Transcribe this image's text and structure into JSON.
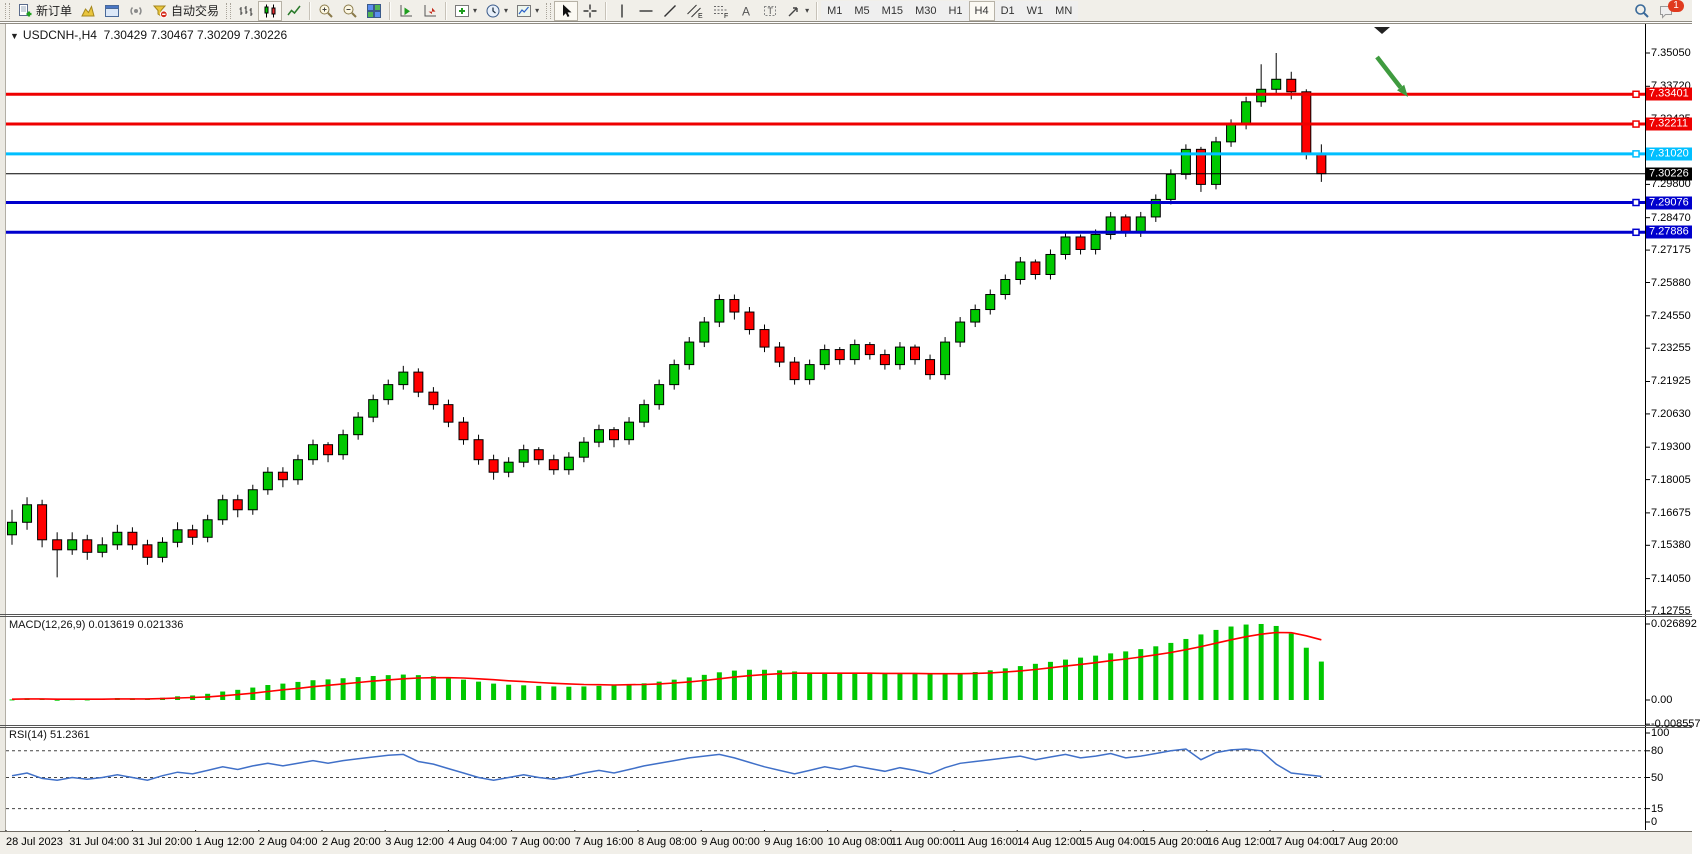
{
  "toolbar": {
    "new_order_label": "新订单",
    "autotrading_label": "自动交易",
    "timeframes": [
      "M1",
      "M5",
      "M15",
      "M30",
      "H1",
      "H4",
      "D1",
      "W1",
      "MN"
    ],
    "active_timeframe": "H4",
    "notification_count": "1"
  },
  "icons": {
    "title_marker": "▼",
    "dropdown_caret": "▾",
    "text_tool": "A",
    "label_tool": "T",
    "channel_tag": "E",
    "fibo_tag": "F"
  },
  "chart": {
    "title_symbol": "USDCNH-,H4",
    "title_ohlc": "7.30429 7.30467 7.30209 7.30226",
    "colors": {
      "bull": "#00C800",
      "bear": "#FF0000",
      "outline": "#000000"
    },
    "price_range": {
      "top": 7.3505,
      "bottom": 7.12755
    },
    "price_ticks": [
      {
        "text": "7.35050",
        "value": 7.3505
      },
      {
        "text": "7.33720",
        "value": 7.3372
      },
      {
        "text": "7.32425",
        "value": 7.32425
      },
      {
        "text": "7.29800",
        "value": 7.298
      },
      {
        "text": "7.28470",
        "value": 7.2847
      },
      {
        "text": "7.27175",
        "value": 7.27175
      },
      {
        "text": "7.25880",
        "value": 7.2588
      },
      {
        "text": "7.24550",
        "value": 7.2455
      },
      {
        "text": "7.23255",
        "value": 7.23255
      },
      {
        "text": "7.21925",
        "value": 7.21925
      },
      {
        "text": "7.20630",
        "value": 7.2063
      },
      {
        "text": "7.19300",
        "value": 7.193
      },
      {
        "text": "7.18005",
        "value": 7.18005
      },
      {
        "text": "7.16675",
        "value": 7.16675
      },
      {
        "text": "7.15380",
        "value": 7.1538
      },
      {
        "text": "7.14050",
        "value": 7.1405
      },
      {
        "text": "7.12755",
        "value": 7.12755
      }
    ],
    "badges": [
      {
        "text": "7.33401",
        "value": 7.33401,
        "bg": "#EE0000",
        "fg": "#FFFFFF"
      },
      {
        "text": "7.32211",
        "value": 7.32211,
        "bg": "#EE0000",
        "fg": "#FFFFFF"
      },
      {
        "text": "7.31020",
        "value": 7.3102,
        "bg": "#00BFFF",
        "fg": "#FFFFFF"
      },
      {
        "text": "7.30226",
        "value": 7.30226,
        "bg": "#000000",
        "fg": "#FFFFFF"
      },
      {
        "text": "7.29076",
        "value": 7.29076,
        "bg": "#0000CD",
        "fg": "#FFFFFF"
      },
      {
        "text": "7.27886",
        "value": 7.27886,
        "bg": "#0000CD",
        "fg": "#FFFFFF"
      }
    ],
    "levels": [
      {
        "value": 7.33401,
        "color": "#EE0000",
        "width": 3
      },
      {
        "value": 7.32211,
        "color": "#EE0000",
        "width": 3
      },
      {
        "value": 7.3102,
        "color": "#00BFFF",
        "width": 3
      },
      {
        "value": 7.29076,
        "color": "#0000CD",
        "width": 3
      },
      {
        "value": 7.27886,
        "color": "#0000CD",
        "width": 3
      }
    ],
    "current_price": {
      "value": 7.30226,
      "color": "#000000"
    },
    "candles": [
      [
        7.158,
        7.168,
        7.154,
        7.163
      ],
      [
        7.163,
        7.173,
        7.16,
        7.17
      ],
      [
        7.17,
        7.172,
        7.153,
        7.156
      ],
      [
        7.156,
        7.159,
        7.141,
        7.152
      ],
      [
        7.152,
        7.159,
        7.15,
        7.156
      ],
      [
        7.156,
        7.158,
        7.148,
        7.151
      ],
      [
        7.151,
        7.157,
        7.149,
        7.154
      ],
      [
        7.154,
        7.162,
        7.152,
        7.159
      ],
      [
        7.159,
        7.161,
        7.152,
        7.154
      ],
      [
        7.154,
        7.156,
        7.146,
        7.149
      ],
      [
        7.149,
        7.157,
        7.147,
        7.155
      ],
      [
        7.155,
        7.163,
        7.153,
        7.16
      ],
      [
        7.16,
        7.162,
        7.154,
        7.157
      ],
      [
        7.157,
        7.166,
        7.155,
        7.164
      ],
      [
        7.164,
        7.174,
        7.162,
        7.172
      ],
      [
        7.172,
        7.174,
        7.165,
        7.168
      ],
      [
        7.168,
        7.178,
        7.166,
        7.176
      ],
      [
        7.176,
        7.185,
        7.174,
        7.183
      ],
      [
        7.183,
        7.185,
        7.177,
        7.18
      ],
      [
        7.18,
        7.19,
        7.178,
        7.188
      ],
      [
        7.188,
        7.196,
        7.186,
        7.194
      ],
      [
        7.194,
        7.195,
        7.187,
        7.19
      ],
      [
        7.19,
        7.2,
        7.188,
        7.198
      ],
      [
        7.198,
        7.207,
        7.196,
        7.205
      ],
      [
        7.205,
        7.214,
        7.203,
        7.212
      ],
      [
        7.212,
        7.22,
        7.21,
        7.218
      ],
      [
        7.218,
        7.2255,
        7.216,
        7.223
      ],
      [
        7.223,
        7.2245,
        7.213,
        7.215
      ],
      [
        7.215,
        7.217,
        7.208,
        7.21
      ],
      [
        7.21,
        7.212,
        7.201,
        7.203
      ],
      [
        7.203,
        7.205,
        7.194,
        7.196
      ],
      [
        7.196,
        7.198,
        7.186,
        7.188
      ],
      [
        7.188,
        7.19,
        7.18,
        7.183
      ],
      [
        7.183,
        7.189,
        7.181,
        7.187
      ],
      [
        7.187,
        7.194,
        7.185,
        7.192
      ],
      [
        7.192,
        7.193,
        7.186,
        7.188
      ],
      [
        7.188,
        7.19,
        7.182,
        7.184
      ],
      [
        7.184,
        7.191,
        7.182,
        7.189
      ],
      [
        7.189,
        7.197,
        7.187,
        7.195
      ],
      [
        7.195,
        7.202,
        7.193,
        7.2
      ],
      [
        7.2,
        7.201,
        7.193,
        7.196
      ],
      [
        7.196,
        7.205,
        7.194,
        7.203
      ],
      [
        7.203,
        7.212,
        7.201,
        7.21
      ],
      [
        7.21,
        7.22,
        7.208,
        7.218
      ],
      [
        7.218,
        7.228,
        7.216,
        7.226
      ],
      [
        7.226,
        7.237,
        7.224,
        7.235
      ],
      [
        7.235,
        7.245,
        7.233,
        7.243
      ],
      [
        7.243,
        7.254,
        7.241,
        7.252
      ],
      [
        7.252,
        7.254,
        7.244,
        7.247
      ],
      [
        7.247,
        7.249,
        7.238,
        7.24
      ],
      [
        7.24,
        7.242,
        7.231,
        7.233
      ],
      [
        7.233,
        7.235,
        7.225,
        7.227
      ],
      [
        7.227,
        7.229,
        7.218,
        7.22
      ],
      [
        7.22,
        7.228,
        7.218,
        7.226
      ],
      [
        7.226,
        7.234,
        7.224,
        7.232
      ],
      [
        7.232,
        7.233,
        7.226,
        7.228
      ],
      [
        7.228,
        7.236,
        7.226,
        7.234
      ],
      [
        7.234,
        7.235,
        7.228,
        7.23
      ],
      [
        7.23,
        7.232,
        7.224,
        7.226
      ],
      [
        7.226,
        7.235,
        7.224,
        7.233
      ],
      [
        7.233,
        7.234,
        7.226,
        7.228
      ],
      [
        7.228,
        7.23,
        7.22,
        7.222
      ],
      [
        7.222,
        7.237,
        7.22,
        7.235
      ],
      [
        7.235,
        7.245,
        7.233,
        7.243
      ],
      [
        7.243,
        7.25,
        7.241,
        7.248
      ],
      [
        7.248,
        7.256,
        7.246,
        7.254
      ],
      [
        7.254,
        7.262,
        7.252,
        7.26
      ],
      [
        7.26,
        7.269,
        7.258,
        7.267
      ],
      [
        7.267,
        7.268,
        7.26,
        7.262
      ],
      [
        7.262,
        7.272,
        7.26,
        7.27
      ],
      [
        7.27,
        7.279,
        7.268,
        7.277
      ],
      [
        7.277,
        7.278,
        7.27,
        7.272
      ],
      [
        7.272,
        7.28,
        7.27,
        7.278
      ],
      [
        7.278,
        7.287,
        7.276,
        7.285
      ],
      [
        7.285,
        7.286,
        7.277,
        7.279
      ],
      [
        7.279,
        7.287,
        7.277,
        7.285
      ],
      [
        7.285,
        7.294,
        7.283,
        7.292
      ],
      [
        7.292,
        7.304,
        7.29,
        7.302
      ],
      [
        7.302,
        7.314,
        7.3,
        7.312
      ],
      [
        7.312,
        7.313,
        7.295,
        7.298
      ],
      [
        7.298,
        7.317,
        7.296,
        7.315
      ],
      [
        7.315,
        7.324,
        7.313,
        7.322
      ],
      [
        7.322,
        7.333,
        7.32,
        7.331
      ],
      [
        7.331,
        7.346,
        7.329,
        7.336
      ],
      [
        7.336,
        7.3505,
        7.334,
        7.34
      ],
      [
        7.34,
        7.343,
        7.332,
        7.335
      ],
      [
        7.335,
        7.336,
        7.308,
        7.31
      ],
      [
        7.31,
        7.314,
        7.299,
        7.3023
      ]
    ]
  },
  "macd": {
    "label": "MACD(12,26,9)",
    "value_main": "0.013619",
    "value_signal": "0.021336",
    "hist_color": "#00C800",
    "signal_color": "#FF0000",
    "scale_ticks": [
      {
        "text": "0.026892",
        "value": 0.026892
      },
      {
        "text": "0.00",
        "value": 0
      },
      {
        "text": "-0.008557",
        "value": -0.008557
      }
    ],
    "hist": [
      0.0002,
      0.0006,
      0.0004,
      0.0001,
      0.0003,
      0.0002,
      0.0004,
      0.0007,
      0.0006,
      0.0004,
      0.0008,
      0.0013,
      0.0016,
      0.0022,
      0.003,
      0.0036,
      0.0044,
      0.0053,
      0.0058,
      0.0064,
      0.007,
      0.0073,
      0.0077,
      0.0081,
      0.0085,
      0.0088,
      0.009,
      0.0088,
      0.0084,
      0.0079,
      0.0072,
      0.0065,
      0.0058,
      0.0054,
      0.0052,
      0.005,
      0.0048,
      0.0047,
      0.0048,
      0.005,
      0.0052,
      0.0055,
      0.0059,
      0.0065,
      0.0072,
      0.008,
      0.0089,
      0.0098,
      0.0104,
      0.0107,
      0.0107,
      0.0105,
      0.0101,
      0.0097,
      0.0095,
      0.0094,
      0.0094,
      0.0094,
      0.0093,
      0.0093,
      0.0093,
      0.0092,
      0.0091,
      0.0094,
      0.0099,
      0.0105,
      0.0112,
      0.012,
      0.0128,
      0.0135,
      0.0143,
      0.015,
      0.0157,
      0.0165,
      0.0172,
      0.018,
      0.019,
      0.0202,
      0.0216,
      0.0232,
      0.0248,
      0.026,
      0.0267,
      0.0269,
      0.0262,
      0.0235,
      0.0185,
      0.0136
    ],
    "signal": [
      0.0003,
      0.0004,
      0.0004,
      0.0003,
      0.0003,
      0.0003,
      0.0003,
      0.0004,
      0.0004,
      0.0004,
      0.0005,
      0.0007,
      0.0009,
      0.0011,
      0.0015,
      0.0019,
      0.0024,
      0.003,
      0.0036,
      0.0041,
      0.0047,
      0.0052,
      0.0057,
      0.0062,
      0.0067,
      0.0071,
      0.0075,
      0.0078,
      0.0079,
      0.0079,
      0.0078,
      0.0075,
      0.0072,
      0.0068,
      0.0065,
      0.0062,
      0.0059,
      0.0057,
      0.0055,
      0.0054,
      0.0053,
      0.0054,
      0.0055,
      0.0057,
      0.006,
      0.0064,
      0.0069,
      0.0075,
      0.0081,
      0.0086,
      0.009,
      0.0093,
      0.0095,
      0.0095,
      0.0095,
      0.0095,
      0.0095,
      0.0095,
      0.0094,
      0.0094,
      0.0094,
      0.0093,
      0.0093,
      0.0093,
      0.0094,
      0.0096,
      0.0099,
      0.0103,
      0.0108,
      0.0114,
      0.012,
      0.0126,
      0.0132,
      0.0139,
      0.0145,
      0.0152,
      0.016,
      0.0168,
      0.0178,
      0.0189,
      0.0201,
      0.0213,
      0.0224,
      0.0233,
      0.0239,
      0.0238,
      0.0227,
      0.0213
    ]
  },
  "rsi": {
    "label": "RSI(14)",
    "value": "51.2361",
    "line_color": "#4070C8",
    "scale_ticks": [
      {
        "text": "100",
        "value": 100
      },
      {
        "text": "80",
        "value": 80
      },
      {
        "text": "50",
        "value": 50
      },
      {
        "text": "15",
        "value": 15
      },
      {
        "text": "0",
        "value": 0
      }
    ],
    "levels": [
      80,
      50,
      15
    ],
    "series": [
      52,
      55,
      49,
      47,
      50,
      48,
      50,
      53,
      50,
      47,
      52,
      56,
      54,
      58,
      62,
      59,
      63,
      66,
      63,
      66,
      69,
      66,
      69,
      71,
      73,
      75,
      76,
      68,
      65,
      60,
      55,
      50,
      47,
      50,
      53,
      50,
      48,
      51,
      55,
      58,
      55,
      59,
      63,
      66,
      69,
      72,
      74,
      76,
      72,
      67,
      62,
      58,
      54,
      58,
      62,
      59,
      63,
      60,
      57,
      61,
      58,
      54,
      61,
      66,
      68,
      70,
      72,
      74,
      70,
      73,
      76,
      72,
      74,
      77,
      72,
      74,
      77,
      80,
      82,
      70,
      78,
      81,
      82,
      80,
      65,
      55,
      53,
      51.2
    ]
  },
  "time_axis": {
    "labels": [
      "28 Jul 2023",
      "31 Jul 04:00",
      "31 Jul 20:00",
      "1 Aug 12:00",
      "2 Aug 04:00",
      "2 Aug 20:00",
      "3 Aug 12:00",
      "4 Aug 04:00",
      "7 Aug 00:00",
      "7 Aug 16:00",
      "8 Aug 08:00",
      "9 Aug 00:00",
      "9 Aug 16:00",
      "10 Aug 08:00",
      "11 Aug 00:00",
      "11 Aug 16:00",
      "14 Aug 12:00",
      "15 Aug 04:00",
      "15 Aug 20:00",
      "16 Aug 12:00",
      "17 Aug 04:00",
      "17 Aug 20:00"
    ]
  },
  "annotations": {
    "arrow_color": "#3F9B3F",
    "shift_marker_color": "#222222"
  }
}
